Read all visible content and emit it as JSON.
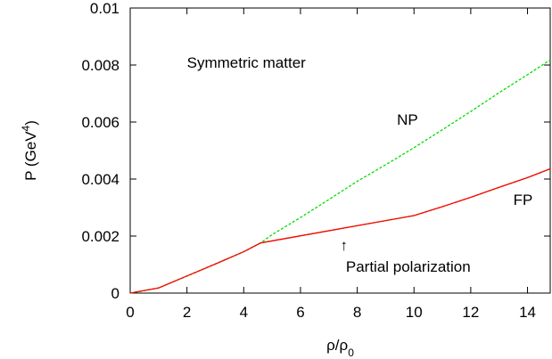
{
  "chart_data": {
    "type": "line",
    "title": "",
    "xlabel_base": "ρ/ρ",
    "xlabel_sub": "0",
    "ylabel_base": "P (GeV",
    "ylabel_sup": "4",
    "ylabel_close": ")",
    "xlim": [
      0,
      14.8
    ],
    "ylim": [
      0,
      0.01
    ],
    "x_ticks": [
      0,
      2,
      4,
      6,
      8,
      10,
      12,
      14
    ],
    "y_ticks": [
      0,
      0.002,
      0.004,
      0.006,
      0.008,
      0.01
    ],
    "x_tick_labels": [
      "0",
      "2",
      "4",
      "6",
      "8",
      "10",
      "12",
      "14"
    ],
    "y_tick_labels": [
      "0",
      "0.002",
      "0.004",
      "0.006",
      "0.008",
      "0.01"
    ],
    "grid": false,
    "legend": "none",
    "series": [
      {
        "label": "NP",
        "color": "#00dd00",
        "style": "dashed",
        "x": [
          0,
          1,
          2,
          3,
          4,
          4.6,
          5,
          6,
          7,
          8,
          9,
          10,
          11,
          12,
          13,
          14,
          14.8
        ],
        "y": [
          0,
          0.00018,
          0.0006,
          0.00102,
          0.00145,
          0.00176,
          0.00205,
          0.00265,
          0.00328,
          0.00392,
          0.0045,
          0.0051,
          0.00573,
          0.00637,
          0.00703,
          0.00766,
          0.00818
        ]
      },
      {
        "label": "FP",
        "color": "#00dd00",
        "style": "dashed",
        "x": [
          0,
          1,
          2,
          3,
          4,
          4.6,
          10,
          11,
          12,
          13,
          14,
          14.8
        ],
        "y": [
          0,
          0.00018,
          0.0006,
          0.00102,
          0.00145,
          0.00176,
          0.00272,
          0.00303,
          0.00336,
          0.00371,
          0.00405,
          0.00436
        ]
      },
      {
        "label": "Partial polarization",
        "color": "#ff0000",
        "style": "solid",
        "x": [
          0,
          1,
          2,
          3,
          4,
          4.6,
          10,
          11,
          12,
          13,
          14,
          14.8
        ],
        "y": [
          0,
          0.00018,
          0.0006,
          0.00102,
          0.00145,
          0.00176,
          0.00272,
          0.00303,
          0.00336,
          0.00371,
          0.00405,
          0.00436
        ]
      }
    ],
    "annotations": [
      {
        "text": "Symmetric matter",
        "x": 2.0,
        "y": 0.0079
      },
      {
        "text": "NP",
        "x": 9.4,
        "y": 0.0059
      },
      {
        "text": "FP",
        "x": 13.5,
        "y": 0.0031
      },
      {
        "text": "↑",
        "x": 7.4,
        "y": 0.0015
      },
      {
        "text": "Partial polarization",
        "x": 7.6,
        "y": 0.00075
      }
    ]
  }
}
